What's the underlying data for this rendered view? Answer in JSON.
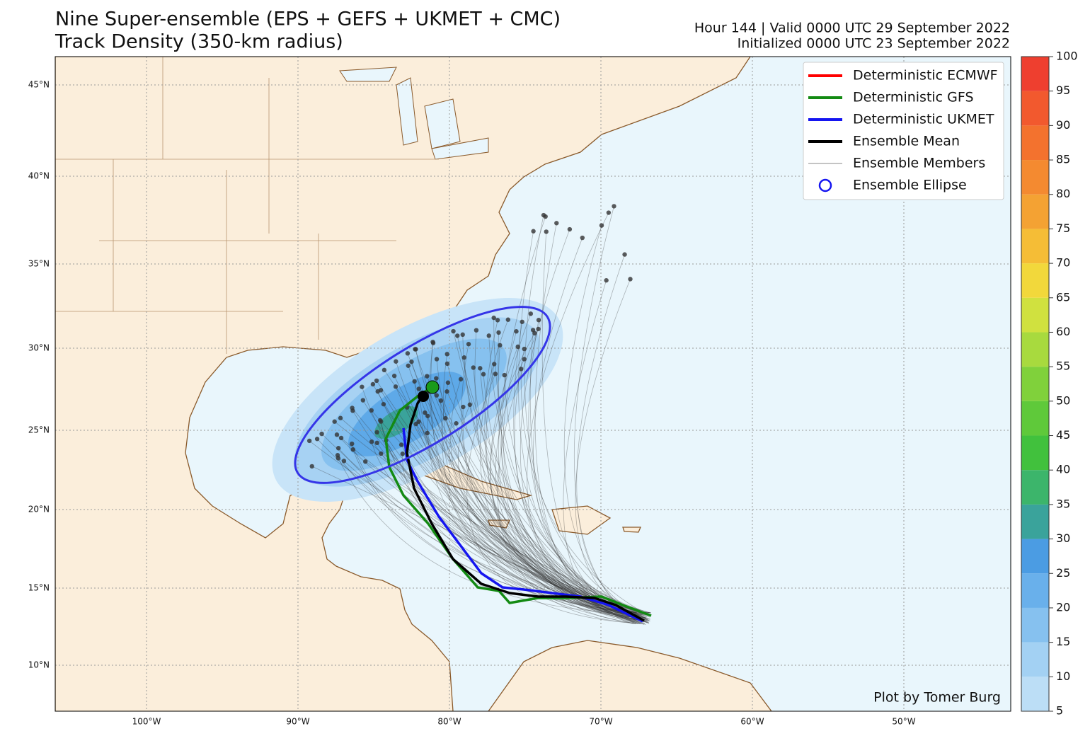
{
  "header": {
    "title_lines": [
      "Nine Super-ensemble (EPS + GEFS + UKMET + CMC)",
      "Track Density (350-km radius)"
    ],
    "info_lines": [
      "Hour 144 | Valid 0000 UTC 29 September 2022",
      "Initialized 0000 UTC 23 September 2022"
    ]
  },
  "legend": {
    "items": [
      {
        "name": "Deterministic ECMWF",
        "color": "#ff0000"
      },
      {
        "name": "Deterministic GFS",
        "color": "#138a13"
      },
      {
        "name": "Deterministic UKMET",
        "color": "#1515f0"
      },
      {
        "name": "Ensemble Mean",
        "color": "#000000"
      },
      {
        "name": "Ensemble Members",
        "color": "#888888"
      },
      {
        "name": "Ensemble Ellipse",
        "color": "#1515f0"
      }
    ]
  },
  "lat_labels": [
    "45°N",
    "40°N",
    "35°N",
    "30°N",
    "25°N",
    "20°N",
    "15°N",
    "10°N"
  ],
  "lon_labels": [
    "100°W",
    "90°W",
    "80°W",
    "70°W",
    "60°W",
    "50°W"
  ],
  "colorbar": {
    "ticks": [
      5,
      10,
      15,
      20,
      25,
      30,
      35,
      40,
      45,
      50,
      55,
      60,
      65,
      70,
      75,
      80,
      85,
      90,
      95,
      100
    ],
    "colors": [
      "#bcdef6",
      "#a3d1f3",
      "#86c1ef",
      "#69b0eb",
      "#4b9ce3",
      "#3aa39b",
      "#3cb56b",
      "#41c13d",
      "#5fc93a",
      "#80d13b",
      "#a8da3e",
      "#d0e13f",
      "#f2d83b",
      "#f5bd36",
      "#f4a233",
      "#f48a30",
      "#f3722e",
      "#f2592e",
      "#ee3f2f"
    ]
  },
  "credit": "Plot by Tomer Burg"
}
